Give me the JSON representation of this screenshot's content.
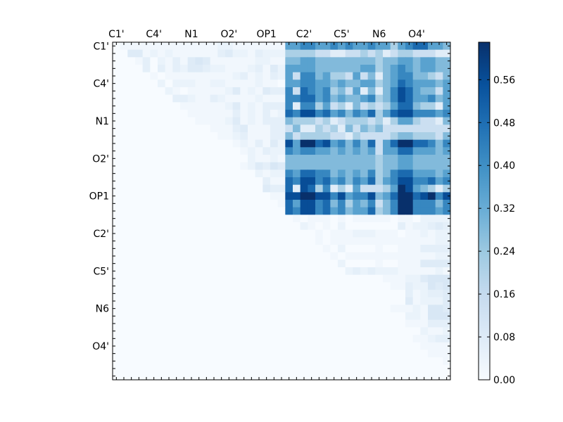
{
  "chart_data": {
    "type": "heatmap",
    "title": "",
    "xlabel": "",
    "ylabel": "",
    "size": 45,
    "x_tick_labels": [
      "C1'",
      "C4'",
      "N1",
      "O2'",
      "OP1",
      "C2'",
      "C5'",
      "N6",
      "O4'"
    ],
    "y_tick_labels": [
      "C1'",
      "C4'",
      "N1",
      "O2'",
      "OP1",
      "C2'",
      "C5'",
      "N6",
      "O4'"
    ],
    "tick_label_positions": [
      0,
      5,
      10,
      15,
      20,
      25,
      30,
      35,
      40
    ],
    "colormap": "Blues",
    "vmin": 0.0,
    "vmax": 0.63,
    "colorbar": {
      "ticks": [
        0.0,
        0.08,
        0.16,
        0.24,
        0.32,
        0.4,
        0.48,
        0.56
      ],
      "tick_labels": [
        "0.00",
        "0.08",
        "0.16",
        "0.24",
        "0.32",
        "0.40",
        "0.48",
        "0.56"
      ]
    },
    "encoding_note": "blue_block: rows 0-22, cols 23-44, digit d -> value d*0.07; light_upper_left: rows 0-22, cols 0-22, digit d -> d*0.02; light_lower_right: rows 23-44, cols 23-44, digit d -> d*0.02; all other cells 0",
    "blue_block": [
      "5566556565565535677554",
      "3333221122323123322211",
      "4455444444443445545544",
      "5555444444553456545544",
      "5266453325241456644324",
      "5566554544553457655545",
      "6276563425141468754425",
      "6677564544563468755645",
      "6166352314232357743315",
      "7688675646573578866656",
      "4333231233323135532214",
      "2411323142434222222222",
      "4233332213222234433324",
      "8599785646472579977646",
      "6566554545452557755545",
      "4444444444443445544444",
      "4444444444443445544444",
      "6577664545463467755545",
      "7688675646573568866756",
      "7187361315222359854313",
      "8899886856684579978968",
      "7588674635462469966646",
      "7688675645573469966656"
    ],
    "light_upper_left": [
      "01111111111111221111111",
      "00441212111111342213222",
      "00013021314541111112211",
      "00003031324432211123142",
      "00000101111111112312132",
      "00000020222112211112110",
      "00000002101111124121433",
      "00000000332113211112111",
      "00000000011111124121333",
      "00000000001111113121312",
      "00000000000111124121333",
      "00000000000001113411133",
      "00000000000000112311133",
      "00000000000000001213142",
      "00000000000000000121322",
      "00000000000000000021121",
      "00000000000000000124354",
      "00000000000000000002122",
      "00000000000000000000311",
      "00000000000000000000433",
      "00000000000000000000011",
      "00000000000000000000001",
      "00000000000000000000000"
    ],
    "light_lower_right": [
      "0101110101111101102222",
      "0021010200000003122343",
      "0000101112221110112122",
      "0000101111111111111122",
      "0000010200001001113333",
      "0000001011111111111122",
      "0000000200001001114444",
      "0000000023232221111121",
      "0000000000000111224555",
      "0000000000000011322545",
      "0000000000000000312334",
      "0000000000000000412224",
      "0000000000000011121554",
      "0000000000000000221555",
      "0000000000000000111333",
      "0000000000000000002112",
      "0000000000000000011233",
      "0000000000000000001111",
      "0000000000000000000111",
      "0000000000000000000001",
      "0000000000000000000000",
      "0000000000000000000000"
    ]
  }
}
